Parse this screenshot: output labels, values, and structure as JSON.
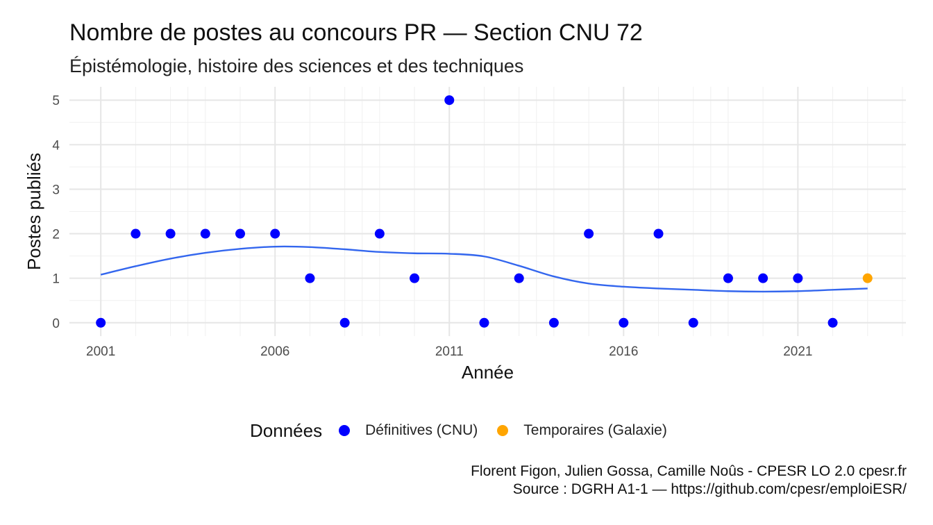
{
  "title": "Nombre de postes au concours PR  —  Section CNU 72",
  "subtitle": "Épistémologie, histoire des sciences et des techniques",
  "caption": {
    "line1": "Florent Figon, Julien Gossa, Camille Noûs - CPESR LO 2.0 cpesr.fr",
    "line2": "Source : DGRH A1-1 — https://github.com/cpesr/emploiESR/"
  },
  "legend": {
    "title": "Données",
    "items": [
      {
        "label": "Définitives (CNU)",
        "color": "#0000ff"
      },
      {
        "label": "Temporaires (Galaxie)",
        "color": "#ffa500"
      }
    ]
  },
  "chart_data": {
    "type": "scatter",
    "xlabel": "Année",
    "ylabel": "Postes publiés",
    "xlim": [
      2000.1,
      2024.1
    ],
    "ylim": [
      -0.3,
      5.3
    ],
    "xticks": [
      2001,
      2006,
      2011,
      2016,
      2021
    ],
    "yticks": [
      0,
      1,
      2,
      3,
      4,
      5
    ],
    "grid": true,
    "legend_position": "bottom",
    "series": [
      {
        "name": "Définitives (CNU)",
        "color": "#0000ff",
        "points": [
          {
            "x": 2001,
            "y": 0
          },
          {
            "x": 2002,
            "y": 2
          },
          {
            "x": 2003,
            "y": 2
          },
          {
            "x": 2004,
            "y": 2
          },
          {
            "x": 2005,
            "y": 2
          },
          {
            "x": 2006,
            "y": 2
          },
          {
            "x": 2007,
            "y": 1
          },
          {
            "x": 2008,
            "y": 0
          },
          {
            "x": 2009,
            "y": 2
          },
          {
            "x": 2010,
            "y": 1
          },
          {
            "x": 2011,
            "y": 5
          },
          {
            "x": 2012,
            "y": 0
          },
          {
            "x": 2013,
            "y": 1
          },
          {
            "x": 2014,
            "y": 0
          },
          {
            "x": 2015,
            "y": 2
          },
          {
            "x": 2016,
            "y": 0
          },
          {
            "x": 2017,
            "y": 2
          },
          {
            "x": 2018,
            "y": 0
          },
          {
            "x": 2019,
            "y": 1
          },
          {
            "x": 2020,
            "y": 1
          },
          {
            "x": 2021,
            "y": 1
          },
          {
            "x": 2022,
            "y": 0
          }
        ]
      },
      {
        "name": "Temporaires (Galaxie)",
        "color": "#ffa500",
        "points": [
          {
            "x": 2023,
            "y": 1
          }
        ]
      }
    ],
    "trend": {
      "color": "#3366ee",
      "points": [
        {
          "x": 2001,
          "y": 1.08
        },
        {
          "x": 2002,
          "y": 1.27
        },
        {
          "x": 2003,
          "y": 1.44
        },
        {
          "x": 2004,
          "y": 1.57
        },
        {
          "x": 2005,
          "y": 1.66
        },
        {
          "x": 2006,
          "y": 1.71
        },
        {
          "x": 2007,
          "y": 1.7
        },
        {
          "x": 2008,
          "y": 1.65
        },
        {
          "x": 2009,
          "y": 1.59
        },
        {
          "x": 2010,
          "y": 1.56
        },
        {
          "x": 2011,
          "y": 1.55
        },
        {
          "x": 2012,
          "y": 1.49
        },
        {
          "x": 2013,
          "y": 1.28
        },
        {
          "x": 2014,
          "y": 1.04
        },
        {
          "x": 2015,
          "y": 0.88
        },
        {
          "x": 2016,
          "y": 0.81
        },
        {
          "x": 2017,
          "y": 0.77
        },
        {
          "x": 2018,
          "y": 0.74
        },
        {
          "x": 2019,
          "y": 0.71
        },
        {
          "x": 2020,
          "y": 0.7
        },
        {
          "x": 2021,
          "y": 0.71
        },
        {
          "x": 2022,
          "y": 0.74
        },
        {
          "x": 2023,
          "y": 0.77
        }
      ]
    }
  }
}
